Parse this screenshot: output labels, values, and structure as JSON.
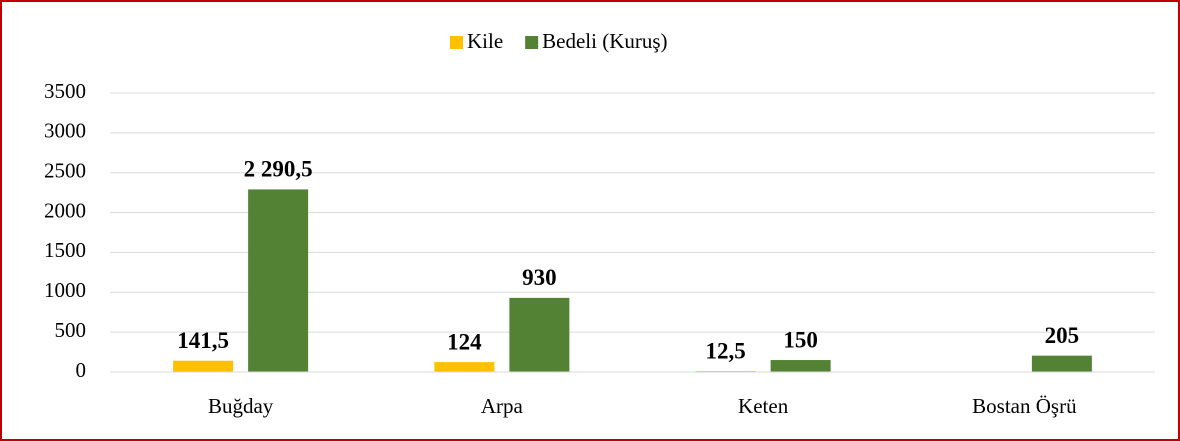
{
  "chart_data": {
    "type": "bar",
    "categories": [
      "Buğday",
      "Arpa",
      "Keten",
      "Bostan Öşrü"
    ],
    "series": [
      {
        "name": "Kile",
        "color": "#ffc000",
        "values": [
          141.5,
          124,
          12.5,
          null
        ],
        "value_labels": [
          "141,5",
          "124",
          "12,5",
          null
        ]
      },
      {
        "name": "Bedeli (Kuruş)",
        "color": "#548235",
        "values": [
          2290.5,
          930,
          150,
          205
        ],
        "value_labels": [
          "2 290,5",
          "930",
          "150",
          "205"
        ]
      }
    ],
    "ylim": [
      0,
      3500
    ],
    "yticks": [
      0,
      500,
      1000,
      1500,
      2000,
      2500,
      3000,
      3500
    ],
    "grid": true,
    "legend": "top"
  }
}
